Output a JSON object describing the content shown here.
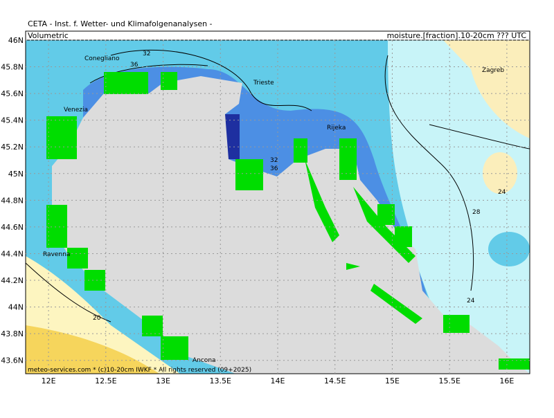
{
  "header": {
    "title": "CETA - Inst. f. Wetter- und Klimafolgenanalysen -",
    "left": "Volumetric",
    "right": "moisture.[fraction].10-20cm ??? UTC"
  },
  "map": {
    "lon_range": [
      11.8,
      16.2
    ],
    "lat_range": [
      43.5,
      46.0
    ],
    "lat_ticks": [
      {
        "value": 46,
        "label": "46N"
      },
      {
        "value": 45.8,
        "label": "45.8N"
      },
      {
        "value": 45.6,
        "label": "45.6N"
      },
      {
        "value": 45.4,
        "label": "45.4N"
      },
      {
        "value": 45.2,
        "label": "45.2N"
      },
      {
        "value": 45,
        "label": "45N"
      },
      {
        "value": 44.8,
        "label": "44.8N"
      },
      {
        "value": 44.6,
        "label": "44.6N"
      },
      {
        "value": 44.4,
        "label": "44.4N"
      },
      {
        "value": 44.2,
        "label": "44.2N"
      },
      {
        "value": 44,
        "label": "44N"
      },
      {
        "value": 43.8,
        "label": "43.8N"
      },
      {
        "value": 43.6,
        "label": "43.6N"
      }
    ],
    "lon_ticks": [
      {
        "value": 12,
        "label": "12E"
      },
      {
        "value": 12.5,
        "label": "12.5E"
      },
      {
        "value": 13,
        "label": "13E"
      },
      {
        "value": 13.5,
        "label": "13.5E"
      },
      {
        "value": 14,
        "label": "14E"
      },
      {
        "value": 14.5,
        "label": "14.5E"
      },
      {
        "value": 15,
        "label": "15E"
      },
      {
        "value": 15.5,
        "label": "15.5E"
      },
      {
        "value": 16,
        "label": "16E"
      }
    ],
    "cities": [
      "Conegliano",
      "Venezia",
      "Trieste",
      "Rijeka",
      "Zagreb",
      "Ravenna",
      "Ancona"
    ],
    "contour_labels": [
      32,
      36,
      32,
      36,
      24,
      28,
      24,
      20
    ]
  },
  "footer": "meteo-services.com * (c)10-20cm IWKF * All rights reserved (09+2025)"
}
